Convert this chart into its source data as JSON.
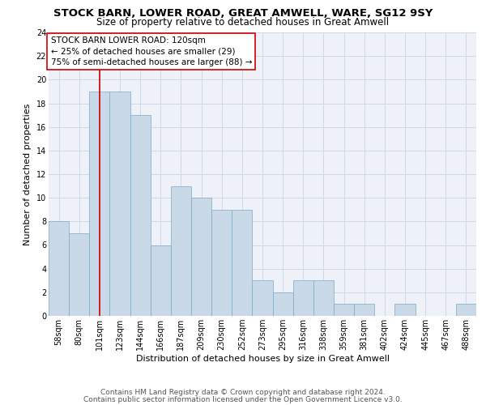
{
  "title": "STOCK BARN, LOWER ROAD, GREAT AMWELL, WARE, SG12 9SY",
  "subtitle": "Size of property relative to detached houses in Great Amwell",
  "xlabel": "Distribution of detached houses by size in Great Amwell",
  "ylabel": "Number of detached properties",
  "categories": [
    "58sqm",
    "80sqm",
    "101sqm",
    "123sqm",
    "144sqm",
    "166sqm",
    "187sqm",
    "209sqm",
    "230sqm",
    "252sqm",
    "273sqm",
    "295sqm",
    "316sqm",
    "338sqm",
    "359sqm",
    "381sqm",
    "402sqm",
    "424sqm",
    "445sqm",
    "467sqm",
    "488sqm"
  ],
  "values": [
    8,
    7,
    19,
    19,
    17,
    6,
    11,
    10,
    9,
    9,
    3,
    2,
    3,
    3,
    1,
    1,
    0,
    1,
    0,
    0,
    1
  ],
  "bar_color": "#c9d9e8",
  "bar_edge_color": "#7aaac8",
  "vline_x_index": 2,
  "vline_color": "#cc0000",
  "annotation_text": "STOCK BARN LOWER ROAD: 120sqm\n← 25% of detached houses are smaller (29)\n75% of semi-detached houses are larger (88) →",
  "annotation_box_color": "#ffffff",
  "annotation_box_edge_color": "#cc0000",
  "ylim": [
    0,
    24
  ],
  "yticks": [
    0,
    2,
    4,
    6,
    8,
    10,
    12,
    14,
    16,
    18,
    20,
    22,
    24
  ],
  "grid_color": "#d0d8e8",
  "bg_color": "#eef2f8",
  "footer_line1": "Contains HM Land Registry data © Crown copyright and database right 2024.",
  "footer_line2": "Contains public sector information licensed under the Open Government Licence v3.0.",
  "title_fontsize": 9.5,
  "subtitle_fontsize": 8.5,
  "xlabel_fontsize": 8,
  "ylabel_fontsize": 8,
  "tick_fontsize": 7,
  "footer_fontsize": 6.5,
  "annot_fontsize": 7.5
}
